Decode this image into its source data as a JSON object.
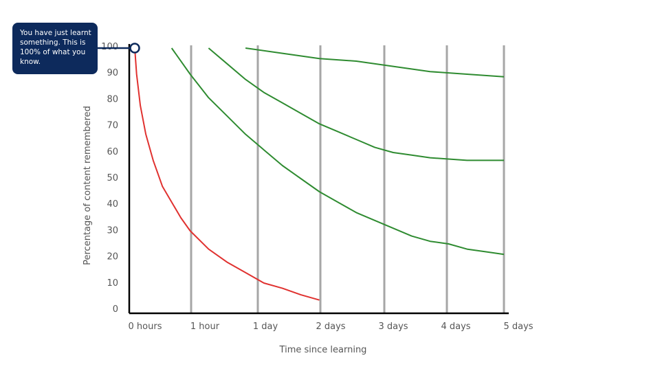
{
  "callout": {
    "text": "You have just learnt something. This is 100% of what you know."
  },
  "chart_data": {
    "type": "line",
    "title": "",
    "xlabel": "Time since learning",
    "ylabel": "Percentage of content remembered",
    "x_ticks": [
      "0 hours",
      "1 hour",
      "1 day",
      "2 days",
      "3 days",
      "4 days",
      "5 days"
    ],
    "y_ticks": [
      0,
      10,
      20,
      30,
      40,
      50,
      60,
      70,
      80,
      90,
      100
    ],
    "ylim": [
      0,
      100
    ],
    "grid": "vertical lines at review points",
    "series": [
      {
        "color": "#e0312f",
        "x": [
          0,
          0.05,
          0.15,
          0.3,
          0.5,
          0.75,
          1,
          1.25,
          1.5,
          2,
          2.5,
          3,
          3.5,
          4,
          4.5,
          5.0,
          5.0
        ],
        "values": [
          100,
          90,
          78,
          67,
          57,
          47,
          41,
          35,
          30,
          23,
          18,
          14,
          10,
          8,
          5.5,
          3.5,
          3.5
        ]
      },
      {
        "color": "#2e8b30",
        "x": [
          1,
          1.5,
          2,
          2.5,
          3,
          3.5,
          4,
          4.5,
          5,
          5.5,
          6,
          6.5,
          7,
          7.5,
          8,
          8.5,
          9,
          9.5,
          10
        ],
        "values": [
          100,
          90,
          81,
          74,
          67,
          61,
          55,
          50,
          45,
          41,
          37,
          34,
          31,
          28,
          26,
          25,
          23,
          22,
          21
        ]
      },
      {
        "color": "#2e8b30",
        "x": [
          2,
          2.5,
          3,
          3.5,
          4,
          4.5,
          5,
          5.5,
          6,
          6.5,
          7,
          7.5,
          8,
          8.5,
          9,
          9.5,
          10
        ],
        "values": [
          100,
          94,
          88,
          83,
          79,
          75,
          71,
          68,
          65,
          62,
          60,
          59,
          58,
          57.5,
          57,
          57,
          57
        ]
      },
      {
        "color": "#2e8b30",
        "x": [
          3,
          4,
          5,
          6,
          7,
          8,
          9,
          10
        ],
        "values": [
          100,
          98,
          96,
          95,
          93,
          91,
          90,
          89
        ]
      }
    ],
    "annotation": {
      "x": 0,
      "value": 100
    }
  }
}
